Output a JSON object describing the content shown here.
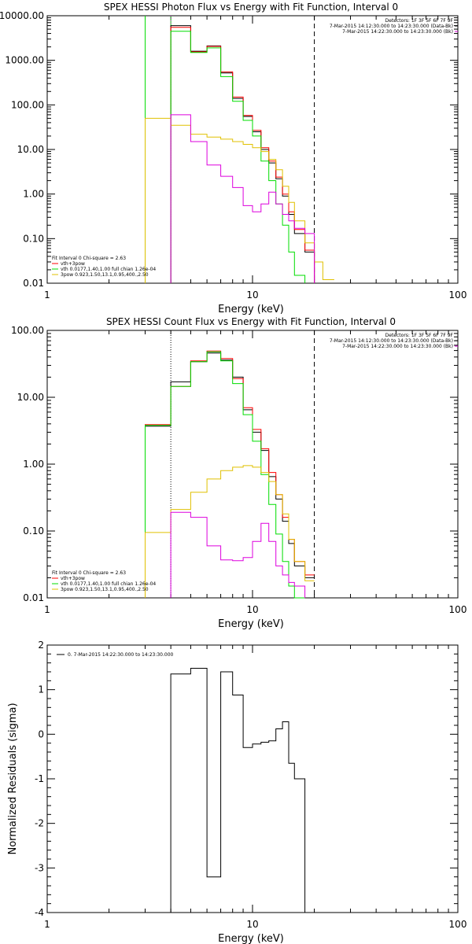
{
  "chart_data": [
    {
      "type": "line",
      "title": "SPEX HESSI Photon Flux vs Energy with Fit Function, Interval 0",
      "xlabel": "Energy (keV)",
      "ylabel": "",
      "x_scale": "log",
      "y_scale": "log",
      "xlim": [
        1,
        100
      ],
      "ylim": [
        0.01,
        10000
      ],
      "x_ticks": [
        {
          "v": 1,
          "label": "1"
        },
        {
          "v": 10,
          "label": "10"
        },
        {
          "v": 100,
          "label": "100"
        }
      ],
      "y_ticks": [
        {
          "v": 0.01,
          "label": "0.01"
        },
        {
          "v": 0.1,
          "label": "0.10"
        },
        {
          "v": 1,
          "label": "1.00"
        },
        {
          "v": 10,
          "label": "10.00"
        },
        {
          "v": 100,
          "label": "100.00"
        },
        {
          "v": 1000,
          "label": "1000.00"
        },
        {
          "v": 10000,
          "label": "10000.00"
        }
      ],
      "header_lines": [
        "Detectors: 1F 3F 5F 6F 7F 9F",
        "7-Mar-2015 14:12:30.000 to 14:23:30.000 (Data-Bk)",
        "7-Mar-2015 14:22:30.000 to 14:23:30.000 (Bk)"
      ],
      "legend_lines": [
        "Fit Interval 0   Chi-square = 2.63",
        "vth+3pow",
        "vth 0.0177,1.40,1.00  full chian 1.26e-04",
        "3pow 0.923,1.50,13.1,0.95,400.,2.50"
      ],
      "colors": {
        "data": "#000000",
        "total": "#ff0000",
        "vth": "#00dd00",
        "pow": "#e0c000",
        "bk": "#dd00dd",
        "marker": "#000000"
      },
      "vlines": [
        {
          "x": 3.0,
          "color": "#00dd00",
          "style": "solid"
        },
        {
          "x": 4.0,
          "color": "#00dd00",
          "style": "solid"
        },
        {
          "x": 4.0,
          "color": "#dd00dd",
          "style": "dotted"
        },
        {
          "x": 20.0,
          "color": "#000000",
          "style": "dashed"
        }
      ],
      "bin_edges": [
        3.0,
        4.0,
        5.0,
        6.0,
        7.0,
        8.0,
        9.0,
        10.0,
        11.0,
        12.0,
        13.0,
        14.0,
        15.0,
        16.0,
        18.0,
        20.0,
        22.0,
        25.0
      ],
      "series": [
        {
          "name": "data",
          "color": "#000000",
          "values": [
            null,
            6000,
            1600,
            2100,
            520,
            140,
            55,
            25,
            10,
            5,
            2.2,
            0.9,
            0.35,
            0.13,
            0.05,
            null,
            null
          ]
        },
        {
          "name": "vth+3pow",
          "color": "#ff0000",
          "values": [
            null,
            5500,
            1550,
            2050,
            550,
            150,
            58,
            27,
            11,
            5.5,
            2.4,
            1.0,
            0.4,
            0.16,
            0.055,
            null,
            null
          ]
        },
        {
          "name": "vth",
          "color": "#00dd00",
          "values": [
            null,
            4500,
            1500,
            1900,
            430,
            120,
            45,
            20,
            5.5,
            2.0,
            0.6,
            0.2,
            0.05,
            0.015,
            null,
            null,
            null
          ]
        },
        {
          "name": "3pow",
          "color": "#e0c000",
          "values": [
            50,
            35,
            22,
            19,
            17,
            15,
            13,
            11,
            9,
            6,
            3.5,
            1.5,
            0.65,
            0.25,
            0.08,
            0.03,
            0.012
          ]
        },
        {
          "name": "bk",
          "color": "#dd00dd",
          "values": [
            null,
            60,
            15,
            4.5,
            2.5,
            1.4,
            0.55,
            0.4,
            0.6,
            1.1,
            0.6,
            0.35,
            0.25,
            0.17,
            0.13,
            null,
            null
          ]
        }
      ]
    },
    {
      "type": "line",
      "title": "SPEX HESSI Count Flux vs Energy with Fit Function, Interval 0",
      "xlabel": "Energy (keV)",
      "ylabel": "",
      "x_scale": "log",
      "y_scale": "log",
      "xlim": [
        1,
        100
      ],
      "ylim": [
        0.01,
        100
      ],
      "x_ticks": [
        {
          "v": 1,
          "label": "1"
        },
        {
          "v": 10,
          "label": "10"
        },
        {
          "v": 100,
          "label": "100"
        }
      ],
      "y_ticks": [
        {
          "v": 0.01,
          "label": "0.01"
        },
        {
          "v": 0.1,
          "label": "0.10"
        },
        {
          "v": 1,
          "label": "1.00"
        },
        {
          "v": 10,
          "label": "10.00"
        },
        {
          "v": 100,
          "label": "100.00"
        }
      ],
      "header_lines": [
        "Detectors: 1F 3F 5F 6F 7F 9F",
        "7-Mar-2015 14:12:30.000 to 14:23:30.000 (Data-Bk)",
        "7-Mar-2015 14:22:30.000 to 14:23:30.000 (Bk)"
      ],
      "legend_lines": [
        "Fit Interval 0   Chi-square = 2.63",
        "vth+3pow",
        "vth 0.0177,1.40,1.00  full chian 1.26e-04",
        "3pow 0.923,1.50,13.1,0.95,400.,2.50"
      ],
      "colors": {
        "data": "#000000",
        "total": "#ff0000",
        "vth": "#00dd00",
        "pow": "#e0c000",
        "bk": "#dd00dd",
        "marker": "#000000"
      },
      "vlines": [
        {
          "x": 4.0,
          "color": "#000000",
          "style": "dotted"
        },
        {
          "x": 20.0,
          "color": "#000000",
          "style": "dashed"
        }
      ],
      "bin_edges": [
        3.0,
        4.0,
        5.0,
        6.0,
        7.0,
        8.0,
        9.0,
        10.0,
        11.0,
        12.0,
        13.0,
        14.0,
        15.0,
        16.0,
        18.0,
        20.0
      ],
      "series": [
        {
          "name": "data",
          "color": "#000000",
          "values": [
            3.7,
            17,
            34,
            46,
            36,
            20,
            6.5,
            3.0,
            1.6,
            0.65,
            0.3,
            0.14,
            0.065,
            0.03,
            0.02
          ]
        },
        {
          "name": "vth+3pow",
          "color": "#ff0000",
          "values": [
            3.9,
            14.5,
            35,
            49,
            38,
            19,
            7.0,
            3.3,
            1.7,
            0.75,
            0.35,
            0.16,
            0.075,
            0.035,
            0.022
          ]
        },
        {
          "name": "vth",
          "color": "#00dd00",
          "values": [
            3.8,
            14.5,
            34,
            48,
            35,
            16,
            5.5,
            2.2,
            0.7,
            0.25,
            0.09,
            0.035,
            0.015,
            0.01,
            null
          ]
        },
        {
          "name": "3pow",
          "color": "#e0c000",
          "values": [
            0.095,
            0.21,
            0.38,
            0.6,
            0.8,
            0.9,
            0.95,
            0.9,
            0.75,
            0.55,
            0.35,
            0.18,
            0.075,
            0.035,
            0.018
          ]
        },
        {
          "name": "bk",
          "color": "#dd00dd",
          "values": [
            null,
            0.19,
            0.16,
            0.06,
            0.037,
            0.036,
            0.04,
            0.07,
            0.13,
            0.07,
            0.03,
            0.022,
            0.017,
            0.015,
            null
          ]
        }
      ]
    },
    {
      "type": "line",
      "title": "",
      "xlabel": "Energy (keV)",
      "ylabel": "Normalized Residuals (sigma)",
      "x_scale": "log",
      "y_scale": "linear",
      "xlim": [
        1,
        100
      ],
      "ylim": [
        -4,
        2
      ],
      "x_ticks": [
        {
          "v": 1,
          "label": "1"
        },
        {
          "v": 10,
          "label": "10"
        },
        {
          "v": 100,
          "label": "100"
        }
      ],
      "y_ticks": [
        {
          "v": -4,
          "label": "-4"
        },
        {
          "v": -3,
          "label": "-3"
        },
        {
          "v": -2,
          "label": "-2"
        },
        {
          "v": -1,
          "label": "-1"
        },
        {
          "v": 0,
          "label": "0"
        },
        {
          "v": 1,
          "label": "1"
        },
        {
          "v": 2,
          "label": "2"
        }
      ],
      "legend_lines": [
        "0. 7-Mar-2015 14:22:30.000 to 14:23:30.000"
      ],
      "header_lines": [],
      "vlines": [],
      "bin_edges": [
        4.0,
        5.0,
        6.0,
        7.0,
        8.0,
        9.0,
        10.0,
        11.0,
        12.0,
        13.0,
        14.0,
        15.0,
        16.0,
        18.0,
        20.0
      ],
      "series": [
        {
          "name": "residuals",
          "color": "#000000",
          "values": [
            1.35,
            1.48,
            -3.2,
            1.4,
            0.88,
            -0.3,
            -0.22,
            -0.18,
            -0.15,
            0.12,
            0.28,
            -0.65,
            -1.0,
            -4.0
          ]
        }
      ]
    }
  ]
}
